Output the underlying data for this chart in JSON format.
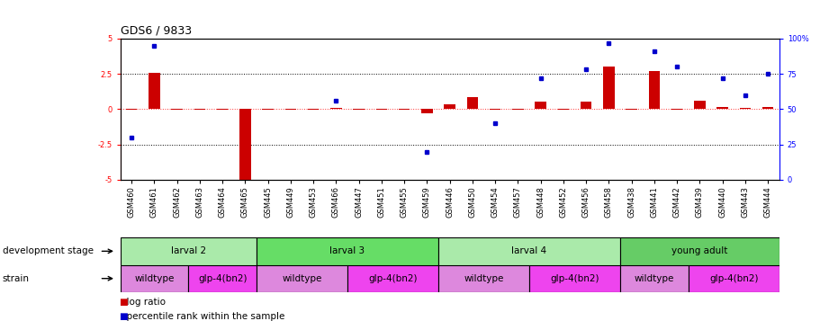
{
  "title": "GDS6 / 9833",
  "samples": [
    "GSM460",
    "GSM461",
    "GSM462",
    "GSM463",
    "GSM464",
    "GSM465",
    "GSM445",
    "GSM449",
    "GSM453",
    "GSM466",
    "GSM447",
    "GSM451",
    "GSM455",
    "GSM459",
    "GSM446",
    "GSM450",
    "GSM454",
    "GSM457",
    "GSM448",
    "GSM452",
    "GSM456",
    "GSM458",
    "GSM438",
    "GSM441",
    "GSM442",
    "GSM439",
    "GSM440",
    "GSM443",
    "GSM444"
  ],
  "log_ratio": [
    -0.05,
    2.6,
    -0.05,
    -0.05,
    -0.05,
    -5.0,
    -0.05,
    -0.05,
    -0.05,
    0.1,
    -0.05,
    -0.05,
    -0.05,
    -0.3,
    0.35,
    0.85,
    -0.05,
    -0.05,
    0.55,
    -0.05,
    0.55,
    3.0,
    -0.05,
    2.7,
    -0.05,
    0.6,
    0.15,
    0.1,
    0.15
  ],
  "percentile": [
    30,
    95,
    null,
    null,
    null,
    null,
    null,
    null,
    null,
    56,
    null,
    null,
    null,
    20,
    null,
    null,
    40,
    null,
    72,
    null,
    78,
    97,
    null,
    91,
    80,
    null,
    72,
    60,
    75
  ],
  "dev_stage_groups": [
    {
      "label": "larval 2",
      "start": 0,
      "end": 5,
      "color": "#aaeaaa"
    },
    {
      "label": "larval 3",
      "start": 6,
      "end": 13,
      "color": "#66dd66"
    },
    {
      "label": "larval 4",
      "start": 14,
      "end": 21,
      "color": "#aaeaaa"
    },
    {
      "label": "young adult",
      "start": 22,
      "end": 28,
      "color": "#66cc66"
    }
  ],
  "strain_groups": [
    {
      "label": "wildtype",
      "start": 0,
      "end": 2,
      "color": "#dd88dd"
    },
    {
      "label": "glp-4(bn2)",
      "start": 3,
      "end": 5,
      "color": "#ee44ee"
    },
    {
      "label": "wildtype",
      "start": 6,
      "end": 9,
      "color": "#dd88dd"
    },
    {
      "label": "glp-4(bn2)",
      "start": 10,
      "end": 13,
      "color": "#ee44ee"
    },
    {
      "label": "wildtype",
      "start": 14,
      "end": 17,
      "color": "#dd88dd"
    },
    {
      "label": "glp-4(bn2)",
      "start": 18,
      "end": 21,
      "color": "#ee44ee"
    },
    {
      "label": "wildtype",
      "start": 22,
      "end": 24,
      "color": "#dd88dd"
    },
    {
      "label": "glp-4(bn2)",
      "start": 25,
      "end": 28,
      "color": "#ee44ee"
    }
  ],
  "ylim": [
    -5,
    5
  ],
  "yticks_left": [
    -5,
    -2.5,
    0,
    2.5,
    5
  ],
  "yticks_right": [
    0,
    25,
    50,
    75,
    100
  ],
  "hlines_dotted": [
    -2.5,
    2.5
  ],
  "bar_color": "#cc0000",
  "dot_color": "#0000cc",
  "background_color": "#ffffff",
  "title_fontsize": 9,
  "tick_fontsize": 6,
  "label_fontsize": 7.5,
  "legend_fontsize": 7.5
}
